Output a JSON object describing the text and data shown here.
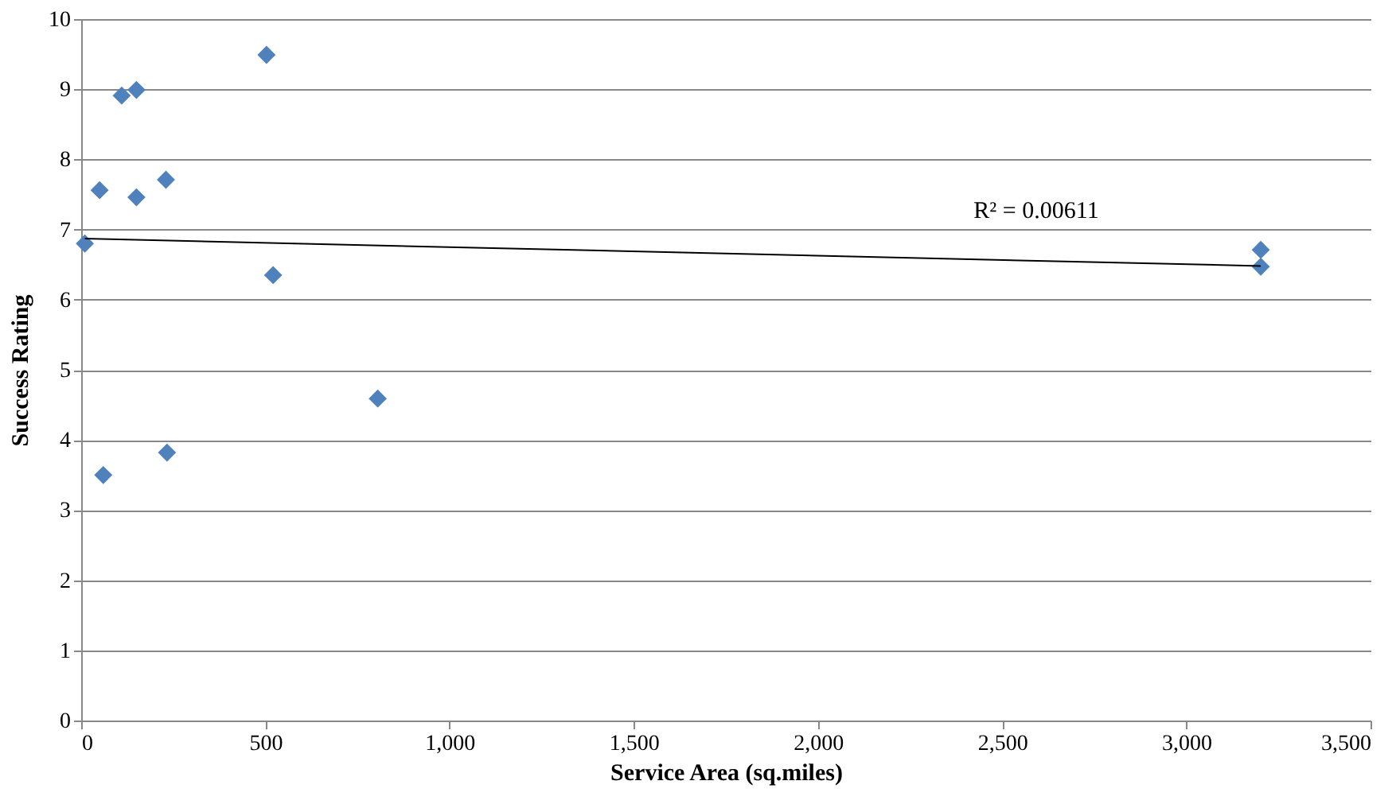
{
  "chart_data": {
    "type": "scatter",
    "xlabel": "Service Area (sq.miles)",
    "ylabel": "Success Rating",
    "series": [
      {
        "color": "#4f81bd",
        "marker": "diamond",
        "x": [
          10,
          50,
          60,
          110,
          150,
          150,
          230,
          233,
          503,
          521,
          805,
          3202,
          3202
        ],
        "values": [
          6.8,
          7.56,
          3.5,
          8.91,
          8.99,
          7.46,
          7.71,
          3.82,
          9.49,
          6.35,
          4.59,
          6.71,
          6.47
        ]
      },
      {
        "type": "line",
        "color": "#000000",
        "line_style": "solid",
        "x": [
          10,
          3202
        ],
        "values": [
          6.87,
          6.48
        ]
      }
    ],
    "annotations": [
      "R² = 0.00611"
    ],
    "xlim": [
      0,
      3500
    ],
    "ylim": [
      0,
      10
    ],
    "xticks": [
      0,
      500,
      {
        "value": 1000,
        "label": "1,000"
      },
      {
        "value": 1500,
        "label": "1,500"
      },
      {
        "value": 2000,
        "label": "2,000"
      },
      {
        "value": 2500,
        "label": "2,500"
      },
      {
        "value": 3000,
        "label": "3,000"
      },
      {
        "value": 3500,
        "label": "3,500"
      }
    ],
    "yticks": [
      0,
      1,
      2,
      3,
      4,
      5,
      6,
      7,
      8,
      9,
      10
    ],
    "grid": "y"
  }
}
